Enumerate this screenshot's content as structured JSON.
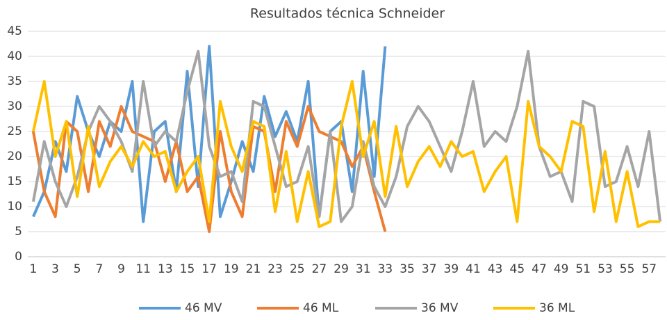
{
  "chart_data": {
    "type": "line",
    "title": "Resultados técnica Schneider",
    "categories": [
      "1",
      null,
      "3",
      null,
      "5",
      null,
      "7",
      null,
      "9",
      null,
      "11",
      null,
      "13",
      null,
      "15",
      null,
      "17",
      null,
      "19",
      null,
      "21",
      null,
      "23",
      null,
      "25",
      null,
      "27",
      null,
      "29",
      null,
      "31",
      null,
      "33",
      null,
      "35",
      null,
      "37",
      null,
      "39",
      null,
      "41",
      null,
      "43",
      null,
      "45",
      null,
      "47",
      null,
      "49",
      null,
      "51",
      null,
      "53",
      null,
      "55",
      null,
      "57",
      null
    ],
    "series": [
      {
        "name": "46 MV",
        "color": "#5b9bd5",
        "values": [
          8,
          13,
          23,
          17,
          32,
          25,
          20,
          27,
          25,
          35,
          7,
          25,
          27,
          13,
          37,
          14,
          42,
          8,
          15,
          23,
          17,
          32,
          24,
          29,
          23,
          35,
          8,
          25,
          27,
          13,
          37,
          16,
          42,
          null,
          null,
          null,
          null,
          null,
          null,
          null,
          null,
          null,
          null,
          null,
          null,
          null,
          null,
          null,
          null,
          null,
          null,
          null,
          null,
          null,
          null,
          null,
          null,
          null
        ]
      },
      {
        "name": "46 ML",
        "color": "#ed7d31",
        "values": [
          25,
          13,
          8,
          27,
          25,
          13,
          27,
          22,
          30,
          25,
          24,
          23,
          15,
          23,
          13,
          16,
          5,
          25,
          13,
          8,
          26,
          25,
          13,
          27,
          22,
          30,
          25,
          24,
          23,
          18,
          22,
          13,
          5,
          null,
          null,
          null,
          null,
          null,
          null,
          null,
          null,
          null,
          null,
          null,
          null,
          null,
          null,
          null,
          null,
          null,
          null,
          null,
          null,
          null,
          null,
          null,
          null,
          null
        ]
      },
      {
        "name": "36 MV",
        "color": "#a5a5a5",
        "values": [
          11,
          23,
          15,
          10,
          16,
          25,
          30,
          27,
          23,
          17,
          35,
          22,
          25,
          23,
          33,
          41,
          22,
          16,
          17,
          11,
          31,
          30,
          22,
          14,
          15,
          22,
          8,
          25,
          7,
          10,
          23,
          14,
          10,
          16,
          26,
          30,
          27,
          22,
          17,
          25,
          35,
          22,
          25,
          23,
          30,
          41,
          22,
          16,
          17,
          11,
          31,
          30,
          14,
          15,
          22,
          14,
          25,
          7
        ]
      },
      {
        "name": "36 ML",
        "color": "#ffc000",
        "values": [
          25,
          35,
          20,
          27,
          12,
          26,
          14,
          19,
          22,
          18,
          23,
          20,
          21,
          13,
          17,
          20,
          7,
          31,
          22,
          17,
          27,
          26,
          9,
          21,
          7,
          17,
          6,
          7,
          26,
          35,
          20,
          27,
          12,
          26,
          14,
          19,
          22,
          18,
          23,
          20,
          21,
          13,
          17,
          20,
          7,
          31,
          22,
          20,
          17,
          27,
          26,
          9,
          21,
          7,
          17,
          6,
          7,
          7
        ]
      }
    ],
    "ylim": [
      0,
      45
    ],
    "yticks": [
      0,
      5,
      10,
      15,
      20,
      25,
      30,
      35,
      40,
      45
    ],
    "grid": true,
    "legend": "bottom"
  }
}
